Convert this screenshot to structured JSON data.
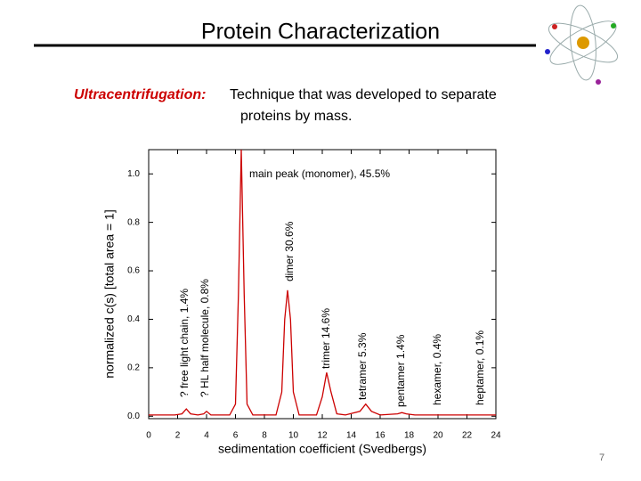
{
  "slide": {
    "title": "Protein Characterization",
    "subtitle_term": "Ultracentrifugation:",
    "subtitle_line_1": "Technique that was developed to separate",
    "subtitle_line_2": "proteins by mass.",
    "page_number": "7"
  },
  "chart_data": {
    "type": "line",
    "x_label": "sedimentation coefficient (Svedbergs)",
    "y_label": "normalized c(s) [total area = 1]",
    "annotations": [
      "main peak (monomer), 45.5%",
      "dimer 30.6%",
      "trimer 14.6%",
      "tetramer 5.3%",
      "pentamer 1.4%",
      "hexamer, 0.4%",
      "heptamer, 0.1%",
      "? free light chain, 1.4%",
      "? HL half molecule, 0.8%"
    ],
    "x": [
      0,
      1.8,
      2.3,
      2.6,
      2.9,
      3.4,
      3.8,
      4.0,
      4.3,
      5.6,
      6.0,
      6.2,
      6.4,
      6.6,
      6.8,
      7.2,
      8.8,
      9.2,
      9.4,
      9.6,
      9.8,
      10.0,
      10.4,
      11.6,
      12.0,
      12.3,
      12.6,
      13.0,
      13.6,
      14.6,
      15.0,
      15.4,
      16.0,
      17.2,
      17.5,
      17.8,
      18.4,
      24
    ],
    "series": [
      {
        "color": "#cc0000",
        "values": [
          0.005,
          0.005,
          0.01,
          0.03,
          0.01,
          0.005,
          0.01,
          0.02,
          0.005,
          0.005,
          0.05,
          0.5,
          1.1,
          0.5,
          0.05,
          0.005,
          0.005,
          0.1,
          0.4,
          0.52,
          0.4,
          0.1,
          0.005,
          0.005,
          0.08,
          0.18,
          0.1,
          0.01,
          0.005,
          0.02,
          0.05,
          0.02,
          0.005,
          0.01,
          0.015,
          0.01,
          0.005,
          0.005
        ]
      }
    ],
    "xlim": [
      0,
      24
    ],
    "xticks": [
      0,
      2,
      4,
      6,
      8,
      10,
      12,
      14,
      16,
      18,
      20,
      22,
      24
    ],
    "ylim": [
      -0.01,
      1.1
    ],
    "yticks": [
      {
        "value": 0,
        "label": "0.0"
      },
      0.2,
      0.4,
      0.6,
      0.8,
      {
        "value": 1,
        "label": "1.0"
      }
    ]
  }
}
